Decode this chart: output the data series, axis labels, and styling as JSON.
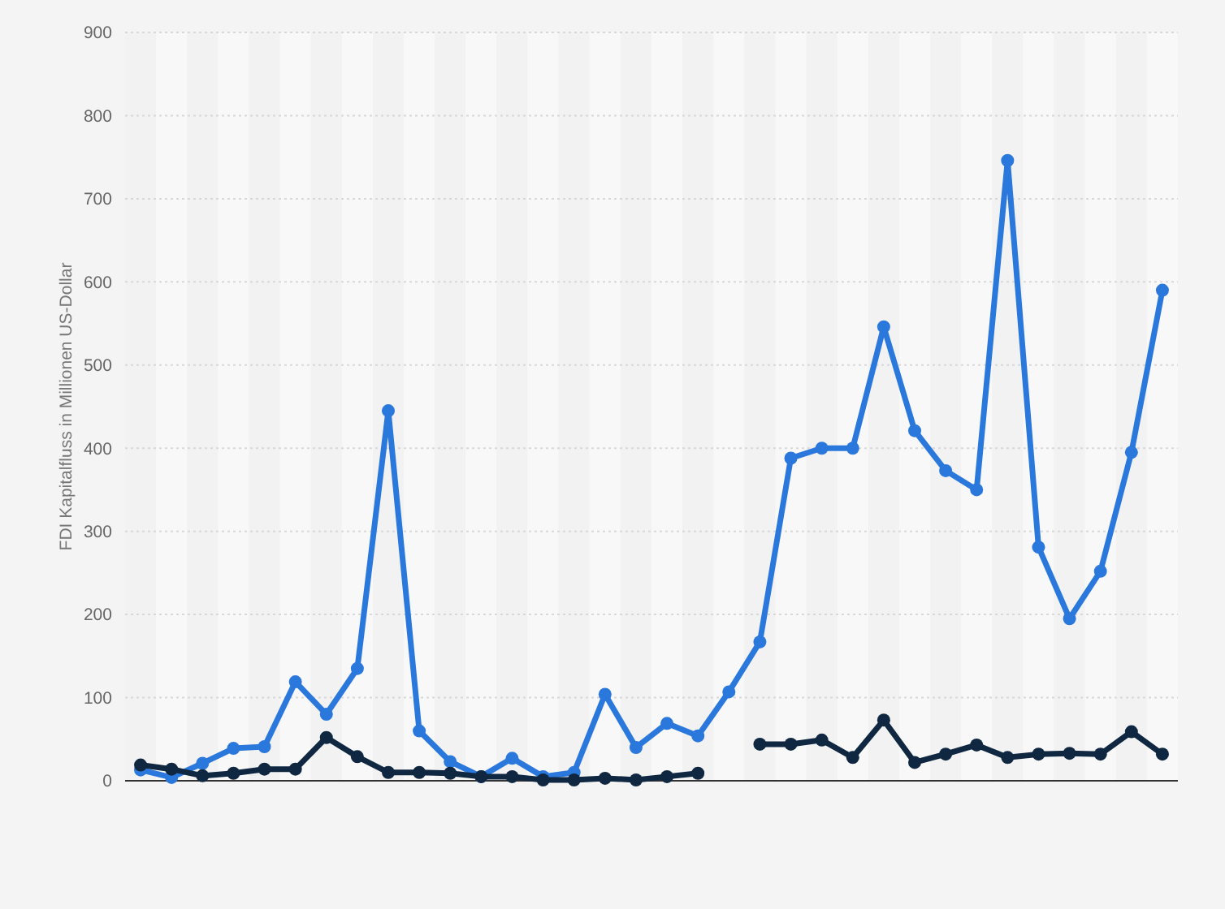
{
  "chart_data": {
    "type": "line",
    "ylabel": "FDI Kapitalfluss in Millionen US-Dollar",
    "categories": [
      null,
      null,
      null,
      null,
      null,
      null,
      null,
      null,
      null,
      null,
      null,
      null,
      null,
      null,
      null,
      null,
      null,
      null,
      null,
      null,
      null,
      null,
      null,
      null,
      null,
      null,
      null,
      null,
      null,
      null,
      null,
      null,
      null,
      null
    ],
    "series": [
      {
        "color": "#2a78dc",
        "values": [
          13,
          4,
          21,
          39,
          41,
          119,
          80,
          135,
          445,
          60,
          23,
          5,
          27,
          5,
          10,
          104,
          40,
          69,
          54,
          107,
          167,
          388,
          400,
          400,
          546,
          421,
          373,
          350,
          746,
          281,
          195,
          252,
          395,
          590
        ]
      },
      {
        "color": "#0f2740",
        "values": [
          19,
          14,
          6,
          9,
          14,
          14,
          52,
          29,
          10,
          10,
          9,
          5,
          5,
          1,
          1,
          3,
          1,
          5,
          9,
          null,
          44,
          44,
          49,
          28,
          73,
          22,
          32,
          43,
          28,
          32,
          33,
          32,
          59,
          32
        ]
      }
    ],
    "ylim": [
      0,
      900
    ],
    "yticks": [
      0,
      100,
      200,
      300,
      400,
      500,
      600,
      700,
      800,
      900
    ],
    "grid": "y",
    "marker": "circle",
    "line_style": "solid"
  }
}
